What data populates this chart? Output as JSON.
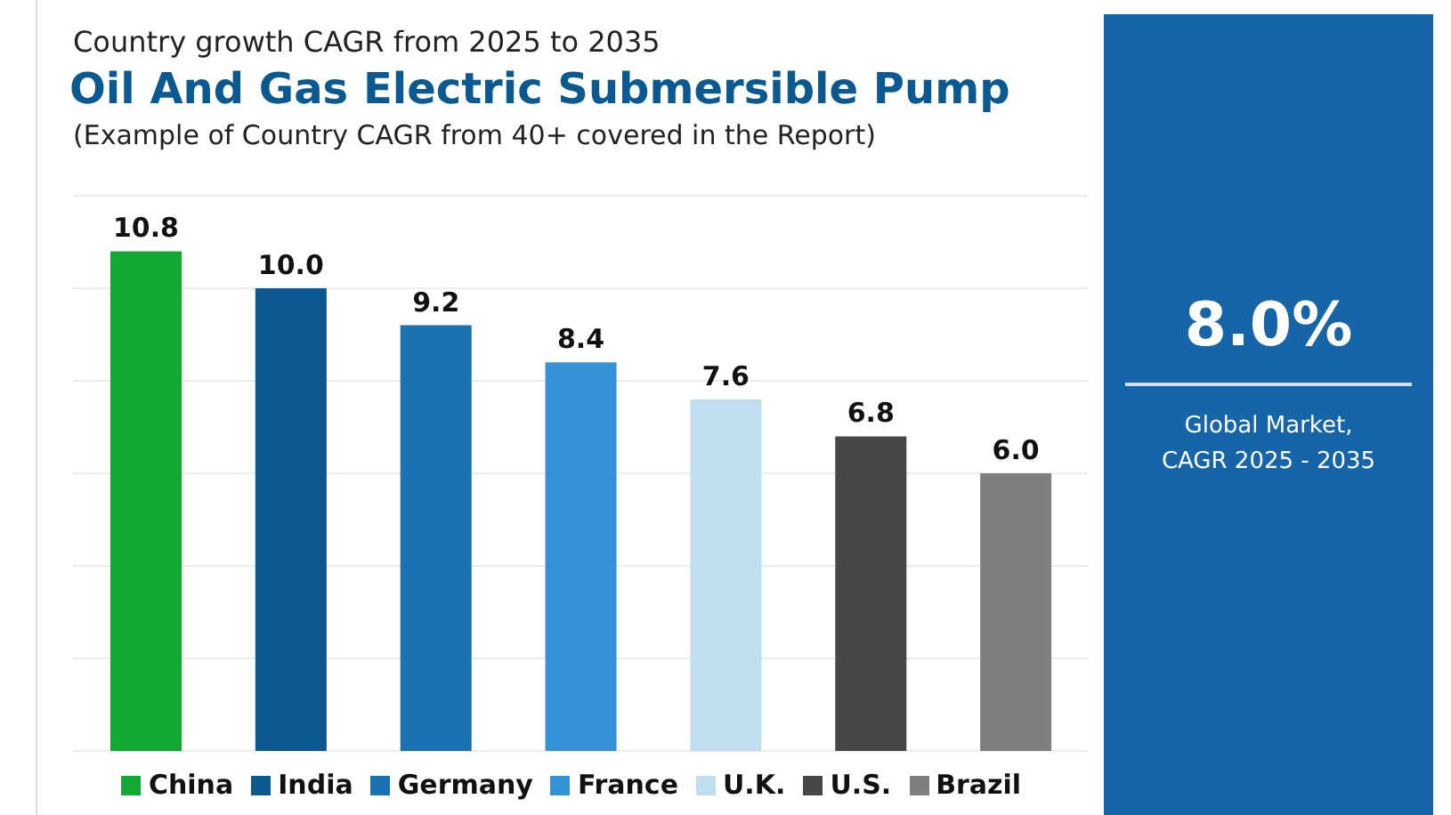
{
  "chart_data": {
    "type": "bar",
    "title": "Oil And Gas Electric Submersible Pump",
    "subtitle": "(Example of Country CAGR from 40+ covered in the Report)",
    "annotations": [
      "Country growth CAGR from 2025 to 2035",
      "8.0%",
      "Global Market, CAGR 2025 - 2035"
    ],
    "categories": [
      null,
      null,
      null,
      null,
      null,
      null,
      null
    ],
    "stacked": true,
    "series": [
      {
        "name": "China",
        "color": "#12a833",
        "values": [
          10.8,
          null,
          null,
          null,
          null,
          null,
          null
        ],
        "value_labels": [
          "10.8",
          null,
          null,
          null,
          null,
          null,
          null
        ]
      },
      {
        "name": "India",
        "color": "#0a5a91",
        "values": [
          null,
          10.0,
          null,
          null,
          null,
          null,
          null
        ],
        "value_labels": [
          null,
          "10.0",
          null,
          null,
          null,
          null,
          null
        ]
      },
      {
        "name": "Germany",
        "color": "#1b72b0",
        "values": [
          null,
          null,
          9.2,
          null,
          null,
          null,
          null
        ],
        "value_labels": [
          null,
          null,
          "9.2",
          null,
          null,
          null,
          null
        ]
      },
      {
        "name": "France",
        "color": "#3393d6",
        "values": [
          null,
          null,
          null,
          8.4,
          null,
          null,
          null
        ],
        "value_labels": [
          null,
          null,
          null,
          "8.4",
          null,
          null,
          null
        ]
      },
      {
        "name": "U.K.",
        "color": "#c1def0",
        "values": [
          null,
          null,
          null,
          null,
          7.6,
          null,
          null
        ],
        "value_labels": [
          null,
          null,
          null,
          null,
          "7.6",
          null,
          null
        ]
      },
      {
        "name": "U.S.",
        "color": "#474747",
        "values": [
          null,
          null,
          null,
          null,
          null,
          6.8,
          null
        ],
        "value_labels": [
          null,
          null,
          null,
          null,
          null,
          "6.8",
          null
        ]
      },
      {
        "name": "Brazil",
        "color": "#7f7f7f",
        "values": [
          null,
          null,
          null,
          null,
          null,
          null,
          6.0
        ],
        "value_labels": [
          null,
          null,
          null,
          null,
          null,
          null,
          "6.0"
        ]
      }
    ],
    "ylim": [
      0,
      12
    ],
    "yticks": [
      0,
      2,
      4,
      6,
      8,
      10,
      12
    ],
    "grid": "y",
    "tick_labels": false,
    "legend": "bottom"
  }
}
